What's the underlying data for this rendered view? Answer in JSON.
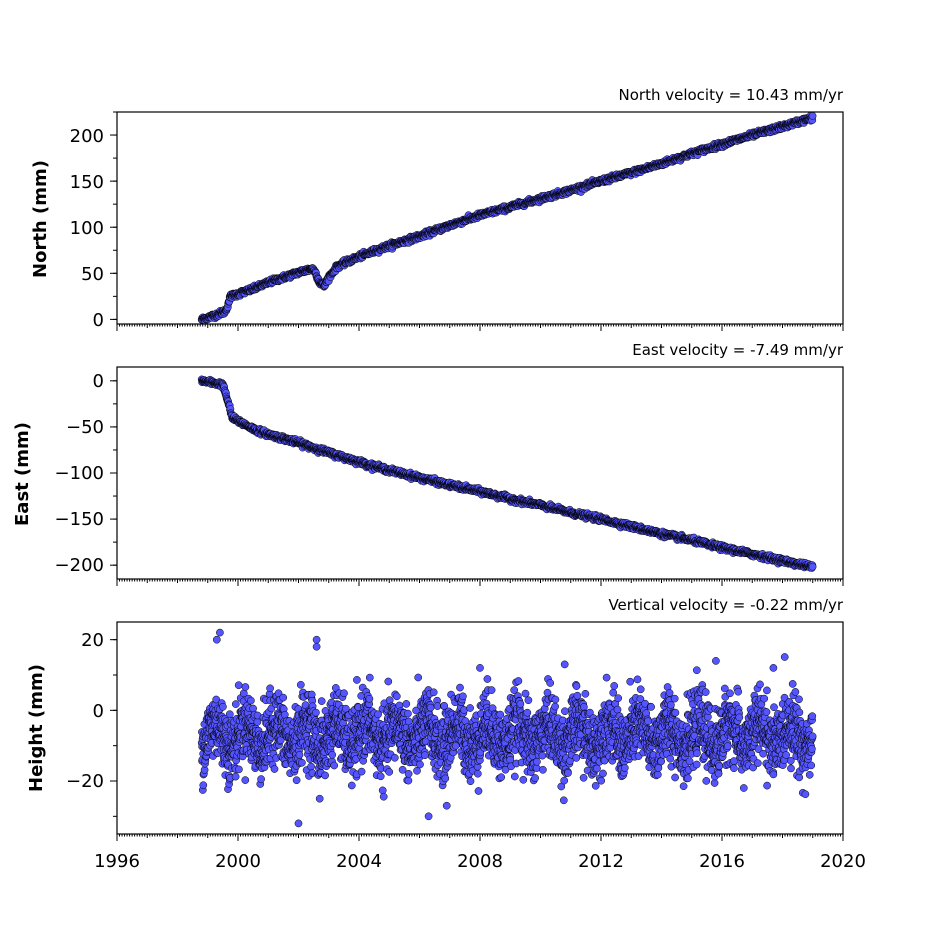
{
  "chart_data": [
    {
      "type": "scatter",
      "title": "North velocity = 10.43 mm/yr",
      "xlabel": "",
      "ylabel": "North (mm)",
      "xlim": [
        1996,
        2020
      ],
      "ylim": [
        -5,
        225
      ],
      "yticks": [
        0,
        50,
        100,
        150,
        200
      ],
      "yticklabels": [
        "0",
        "50",
        "100",
        "150",
        "200"
      ],
      "x_tick_labels_shown": false,
      "grid": false,
      "marker_color": "#5555ff",
      "marker_edge": "#000000",
      "trend_points": [
        {
          "x": 1998.8,
          "y": 0
        },
        {
          "x": 1999.2,
          "y": 4
        },
        {
          "x": 1999.6,
          "y": 9
        },
        {
          "x": 1999.75,
          "y": 25
        },
        {
          "x": 2000.5,
          "y": 33
        },
        {
          "x": 2001.0,
          "y": 40
        },
        {
          "x": 2002.0,
          "y": 51
        },
        {
          "x": 2002.45,
          "y": 55
        },
        {
          "x": 2002.55,
          "y": 52
        },
        {
          "x": 2002.7,
          "y": 40
        },
        {
          "x": 2002.85,
          "y": 36
        },
        {
          "x": 2003.0,
          "y": 46
        },
        {
          "x": 2003.3,
          "y": 58
        },
        {
          "x": 2004.0,
          "y": 68
        },
        {
          "x": 2005.0,
          "y": 80
        },
        {
          "x": 2006.0,
          "y": 90
        },
        {
          "x": 2007.0,
          "y": 102
        },
        {
          "x": 2008.0,
          "y": 113
        },
        {
          "x": 2009.0,
          "y": 122
        },
        {
          "x": 2010.0,
          "y": 131
        },
        {
          "x": 2011.0,
          "y": 140
        },
        {
          "x": 2012.0,
          "y": 150
        },
        {
          "x": 2013.0,
          "y": 159
        },
        {
          "x": 2014.0,
          "y": 169
        },
        {
          "x": 2015.0,
          "y": 180
        },
        {
          "x": 2016.0,
          "y": 190
        },
        {
          "x": 2017.0,
          "y": 200
        },
        {
          "x": 2018.0,
          "y": 209
        },
        {
          "x": 2019.0,
          "y": 219
        }
      ]
    },
    {
      "type": "scatter",
      "title": "East velocity = -7.49 mm/yr",
      "xlabel": "",
      "ylabel": "East (mm)",
      "xlim": [
        1996,
        2020
      ],
      "ylim": [
        -215,
        15
      ],
      "yticks": [
        0,
        -50,
        -100,
        -150,
        -200
      ],
      "yticklabels": [
        "0",
        "−50",
        "−100",
        "−150",
        "−200"
      ],
      "x_tick_labels_shown": false,
      "grid": false,
      "marker_color": "#5555ff",
      "marker_edge": "#000000",
      "trend_points": [
        {
          "x": 1998.8,
          "y": 0
        },
        {
          "x": 1999.5,
          "y": -4
        },
        {
          "x": 1999.75,
          "y": -32
        },
        {
          "x": 1999.8,
          "y": -40
        },
        {
          "x": 2000.5,
          "y": -52
        },
        {
          "x": 2001.0,
          "y": -58
        },
        {
          "x": 2002.0,
          "y": -67
        },
        {
          "x": 2003.0,
          "y": -78
        },
        {
          "x": 2004.0,
          "y": -88
        },
        {
          "x": 2005.0,
          "y": -97
        },
        {
          "x": 2006.0,
          "y": -105
        },
        {
          "x": 2007.0,
          "y": -113
        },
        {
          "x": 2008.0,
          "y": -120
        },
        {
          "x": 2009.0,
          "y": -128
        },
        {
          "x": 2010.0,
          "y": -135
        },
        {
          "x": 2011.0,
          "y": -143
        },
        {
          "x": 2012.0,
          "y": -150
        },
        {
          "x": 2013.0,
          "y": -158
        },
        {
          "x": 2014.0,
          "y": -166
        },
        {
          "x": 2015.0,
          "y": -173
        },
        {
          "x": 2016.0,
          "y": -181
        },
        {
          "x": 2017.0,
          "y": -188
        },
        {
          "x": 2018.0,
          "y": -195
        },
        {
          "x": 2019.0,
          "y": -202
        }
      ]
    },
    {
      "type": "scatter",
      "title": "Vertical velocity = -0.22 mm/yr",
      "xlabel": "",
      "ylabel": "Height (mm)",
      "xlim": [
        1996,
        2020
      ],
      "ylim": [
        -35,
        25
      ],
      "yticks": [
        20,
        0,
        -20
      ],
      "yticklabels": [
        "20",
        "0",
        "−20"
      ],
      "xticks": [
        1996,
        2000,
        2004,
        2008,
        2012,
        2016,
        2020
      ],
      "xticklabels": [
        "1996",
        "2000",
        "2004",
        "2008",
        "2012",
        "2016",
        "2020"
      ],
      "grid": false,
      "marker_color": "#5555ff",
      "marker_edge": "#000000",
      "noise_band": {
        "x_start": 1998.8,
        "x_end": 2019.0,
        "mean": -7,
        "spread": 6
      },
      "outliers": [
        {
          "x": 1999.4,
          "y": 22
        },
        {
          "x": 1999.3,
          "y": 20
        },
        {
          "x": 2002.6,
          "y": 20
        },
        {
          "x": 2002.6,
          "y": 18
        },
        {
          "x": 2008.0,
          "y": 12
        },
        {
          "x": 2010.8,
          "y": 13
        },
        {
          "x": 2015.8,
          "y": 14
        },
        {
          "x": 2017.7,
          "y": 12
        },
        {
          "x": 2002.0,
          "y": -32
        },
        {
          "x": 2006.3,
          "y": -30
        },
        {
          "x": 2002.7,
          "y": -25
        },
        {
          "x": 2006.9,
          "y": -27
        }
      ]
    }
  ]
}
